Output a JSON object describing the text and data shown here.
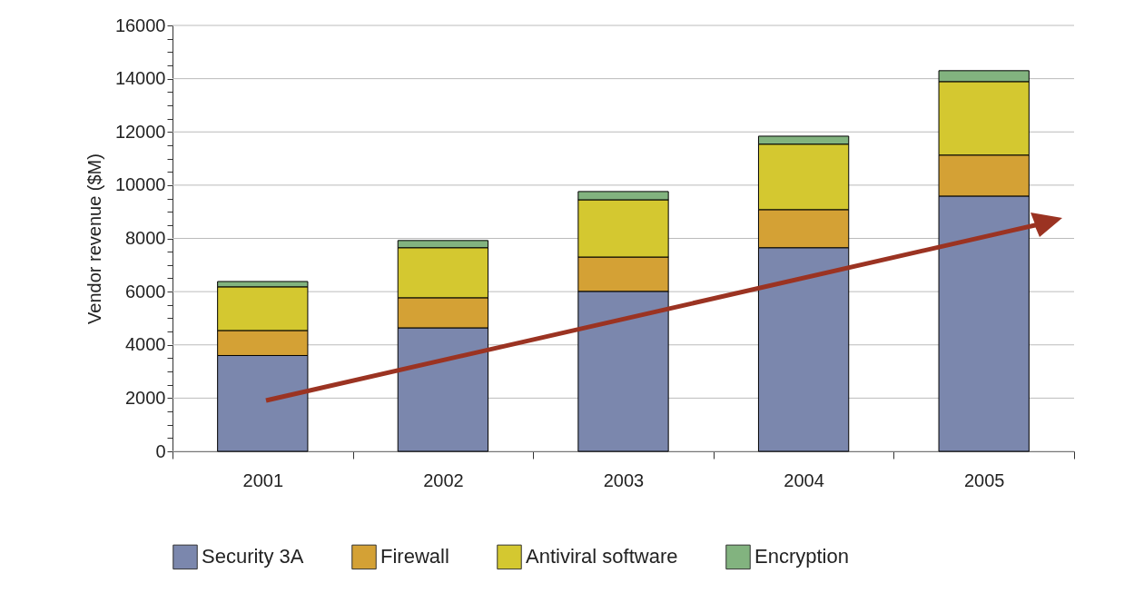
{
  "chart_data": {
    "type": "bar",
    "stacked": true,
    "ylabel": "Vendor revenue ($M)",
    "categories": [
      "2001",
      "2002",
      "2003",
      "2004",
      "2005"
    ],
    "series": [
      {
        "name": "Security 3A",
        "color": "#7b87ad",
        "values": [
          3600,
          4640,
          6010,
          7650,
          9590
        ]
      },
      {
        "name": "Firewall",
        "color": "#d4a135",
        "values": [
          940,
          1130,
          1290,
          1430,
          1540
        ]
      },
      {
        "name": "Antiviral software",
        "color": "#d4c830",
        "values": [
          1640,
          1880,
          2150,
          2460,
          2760
        ]
      },
      {
        "name": "Encryption",
        "color": "#82b37f",
        "values": [
          200,
          270,
          310,
          300,
          410
        ]
      }
    ],
    "ylim": [
      0,
      16000
    ],
    "yticks": [
      0,
      {
        "value": 500,
        "label": null
      },
      {
        "value": 1000,
        "label": null
      },
      {
        "value": 1500,
        "label": null
      },
      2000,
      {
        "value": 2500,
        "label": null
      },
      {
        "value": 3000,
        "label": null
      },
      {
        "value": 3500,
        "label": null
      },
      4000,
      {
        "value": 4500,
        "label": null
      },
      {
        "value": 5000,
        "label": null
      },
      {
        "value": 5500,
        "label": null
      },
      6000,
      {
        "value": 6500,
        "label": null
      },
      {
        "value": 7000,
        "label": null
      },
      {
        "value": 7500,
        "label": null
      },
      8000,
      {
        "value": 8500,
        "label": null
      },
      {
        "value": 9000,
        "label": null
      },
      {
        "value": 9500,
        "label": null
      },
      10000,
      {
        "value": 10500,
        "label": null
      },
      {
        "value": 11000,
        "label": null
      },
      {
        "value": 11500,
        "label": null
      },
      12000,
      {
        "value": 12500,
        "label": null
      },
      {
        "value": 13000,
        "label": null
      },
      {
        "value": 13500,
        "label": null
      },
      14000,
      {
        "value": 14500,
        "label": null
      },
      {
        "value": 15000,
        "label": null
      },
      {
        "value": 15500,
        "label": null
      },
      16000
    ],
    "grid": "y",
    "legend": "bottom"
  }
}
